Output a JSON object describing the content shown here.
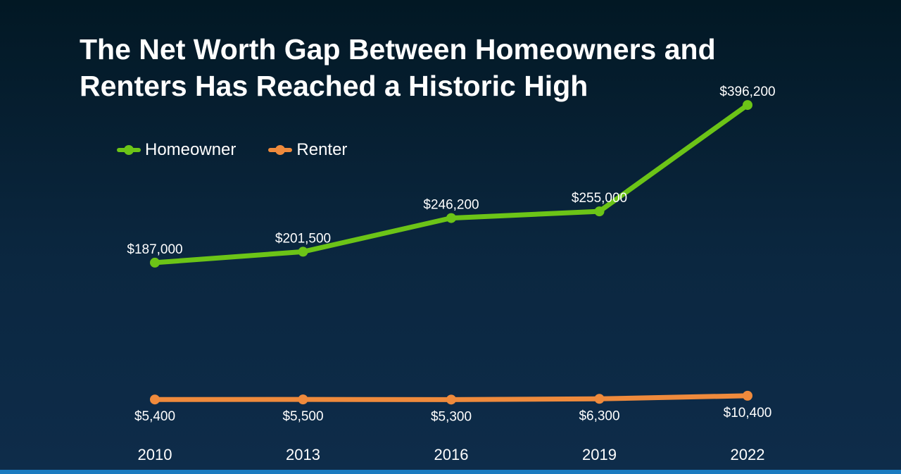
{
  "title_lines": [
    "The Net Worth Gap Between Homeowners and",
    "Renters Has Reached a Historic High"
  ],
  "chart_data": {
    "type": "line",
    "title": "The Net Worth Gap Between Homeowners and Renters Has Reached a Historic High",
    "xlabel": "",
    "ylabel": "",
    "ylim": [
      0,
      400000
    ],
    "grid": false,
    "legend_position": "top-left",
    "categories": [
      "2010",
      "2013",
      "2016",
      "2019",
      "2022"
    ],
    "series": [
      {
        "name": "Homeowner",
        "color": "#6cc417",
        "values": [
          187000,
          201500,
          246200,
          255000,
          396200
        ],
        "labels": [
          "$187,000",
          "$201,500",
          "$246,200",
          "$255,000",
          "$396,200"
        ],
        "label_position": "above"
      },
      {
        "name": "Renter",
        "color": "#ef8a3c",
        "values": [
          5400,
          5500,
          5300,
          6300,
          10400
        ],
        "labels": [
          "$5,400",
          "$5,500",
          "$5,300",
          "$6,300",
          "$10,400"
        ],
        "label_position": "below"
      }
    ]
  },
  "colors": {
    "background_top": "#021824",
    "background_bottom": "#0e2c4a",
    "bottom_accent": "#1b7bc0",
    "text": "#ffffff"
  }
}
